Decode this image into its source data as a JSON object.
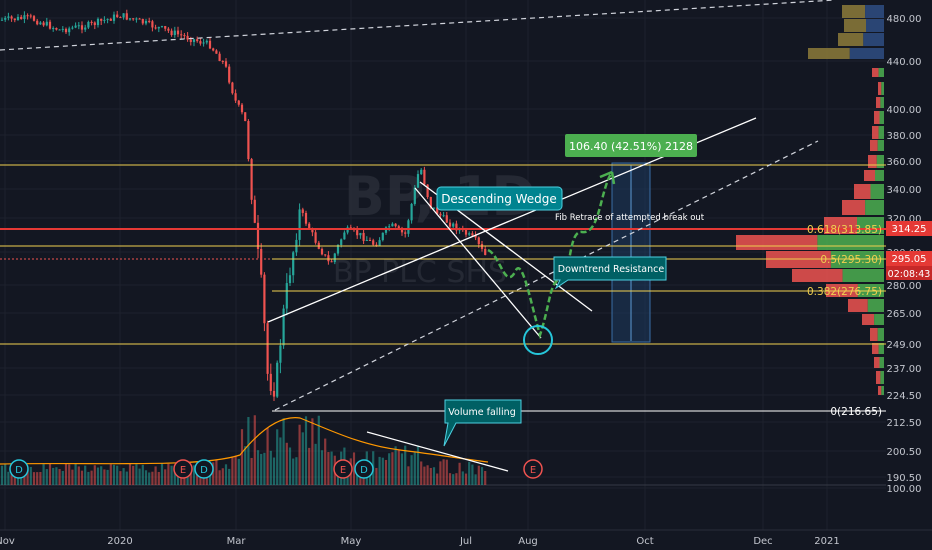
{
  "chart_data": {
    "type": "candlestick",
    "symbol_watermark": "BP, 1D",
    "watermark_subtitle": "BP PLC SHS",
    "time_labels": [
      "Nov",
      "2020",
      "Mar",
      "May",
      "Jul",
      "Aug",
      "Oct",
      "Dec",
      "2021"
    ],
    "price_ticks": [
      "480.00",
      "440.00",
      "400.00",
      "380.00",
      "360.00",
      "340.00",
      "320.00",
      "300.00",
      "280.00",
      "265.00",
      "249.00",
      "237.00",
      "224.50",
      "212.50",
      "200.50",
      "190.50",
      "100.00"
    ],
    "ylim": [
      180,
      492
    ],
    "price_badges": {
      "fib_price": "314.25",
      "last_price": "295.05",
      "countdown": "02:08:43"
    },
    "fib_levels": [
      {
        "label": "0.618(313.85)",
        "value": 313.85
      },
      {
        "label": "0.5(295.30)",
        "value": 295.3
      },
      {
        "label": "0.382(276.75)",
        "value": 276.75
      },
      {
        "label": "0(216.65)",
        "value": 216.65
      }
    ],
    "horizontal_levels": [
      357,
      303,
      249
    ],
    "annotations": {
      "measured_move": "106.40 (42.51%) 2128",
      "wedge": "Descending Wedge",
      "fib_note": "Fib Retrace of attempted break out",
      "downtrend": "Downtrend Resistance",
      "volume": "Volume falling"
    },
    "event_markers": [
      {
        "label": "D",
        "type": "dividend"
      },
      {
        "label": "E",
        "type": "earnings"
      },
      {
        "label": "D",
        "type": "dividend"
      },
      {
        "label": "E",
        "type": "earnings"
      },
      {
        "label": "D",
        "type": "dividend"
      },
      {
        "label": "E",
        "type": "earnings"
      }
    ],
    "colors": {
      "background": "#131722",
      "up": "#26a69a",
      "down": "#ef5350",
      "fib": "#f0d050",
      "target": "#4caf50",
      "red_line": "#e53935"
    }
  }
}
